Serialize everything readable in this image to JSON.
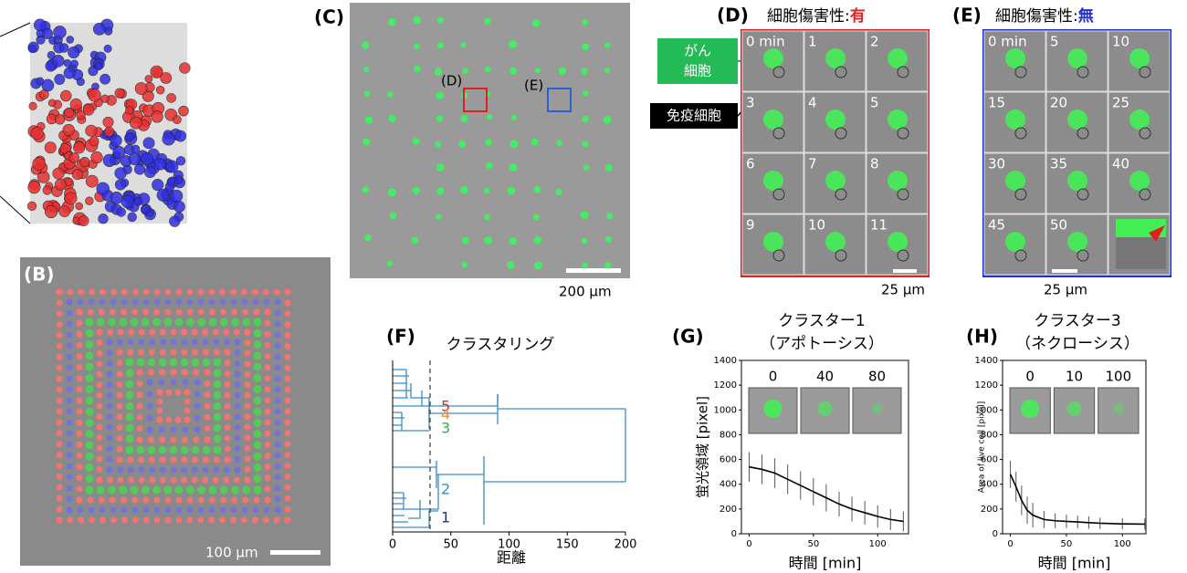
{
  "panels": {
    "B": {
      "label": "(B)",
      "scale_bar": "100 µm"
    },
    "C": {
      "label": "(C)",
      "scale_bar": "200 µm",
      "box_d": "(D)",
      "box_e": "(E)"
    },
    "D": {
      "label": "(D)",
      "title": "細胞傷害性:",
      "title_value": "有",
      "cancer_cell": [
        "がん",
        "細胞"
      ],
      "immune_cell": "免疫細胞",
      "frames": [
        "0 min",
        "1",
        "2",
        "3",
        "4",
        "5",
        "6",
        "7",
        "8",
        "9",
        "10",
        "11"
      ],
      "scale_bar": "25 µm"
    },
    "E": {
      "label": "(E)",
      "title": "細胞傷害性:",
      "title_value": "無",
      "frames": [
        "0 min",
        "5",
        "10",
        "15",
        "20",
        "25",
        "30",
        "35",
        "40",
        "45",
        "50"
      ],
      "scale_bar": "25 µm"
    },
    "F": {
      "label": "(F)",
      "title": "クラスタリング",
      "clusters": [
        "5",
        "4",
        "3",
        "2",
        "1"
      ],
      "xlabel": "距離",
      "xlim": [
        0,
        200
      ],
      "xticks": [
        0,
        50,
        100,
        150,
        200
      ]
    },
    "G": {
      "label": "(G)",
      "title": [
        "クラスター1",
        "（アポトーシス）"
      ],
      "ylabel": "蛍光領域 [pixel]",
      "xlabel": "時間 [min]",
      "insets": [
        "0",
        "40",
        "80"
      ],
      "xlim": [
        -6,
        124
      ],
      "ylim": [
        0,
        1400
      ],
      "xticks": [
        0,
        50,
        100
      ],
      "yticks": [
        0,
        200,
        400,
        600,
        800,
        1000,
        1200,
        1400
      ],
      "x": [
        0,
        10,
        20,
        30,
        40,
        50,
        60,
        70,
        80,
        90,
        100,
        110,
        120
      ],
      "values": [
        540,
        520,
        490,
        440,
        390,
        340,
        290,
        240,
        200,
        170,
        140,
        115,
        100
      ],
      "errors": [
        120,
        120,
        120,
        120,
        115,
        110,
        110,
        100,
        100,
        95,
        90,
        85,
        80
      ]
    },
    "H": {
      "label": "(H)",
      "title": [
        "クラスター3",
        "（ネクローシス）"
      ],
      "ylabel": "Area of live cell [pixel]",
      "xlabel": "時間 [min]",
      "insets": [
        "0",
        "10",
        "100"
      ],
      "xlim": [
        -7,
        121
      ],
      "ylim": [
        0,
        1400
      ],
      "xticks": [
        0,
        50,
        100
      ],
      "yticks": [
        0,
        200,
        400,
        600,
        800,
        1000,
        1200,
        1400
      ],
      "x": [
        0,
        5,
        10,
        15,
        20,
        30,
        40,
        50,
        60,
        70,
        80,
        100,
        120
      ],
      "values": [
        480,
        380,
        270,
        190,
        150,
        115,
        105,
        100,
        95,
        90,
        85,
        80,
        78
      ],
      "errors": [
        110,
        120,
        120,
        110,
        100,
        70,
        60,
        55,
        50,
        50,
        45,
        45,
        45
      ]
    }
  }
}
